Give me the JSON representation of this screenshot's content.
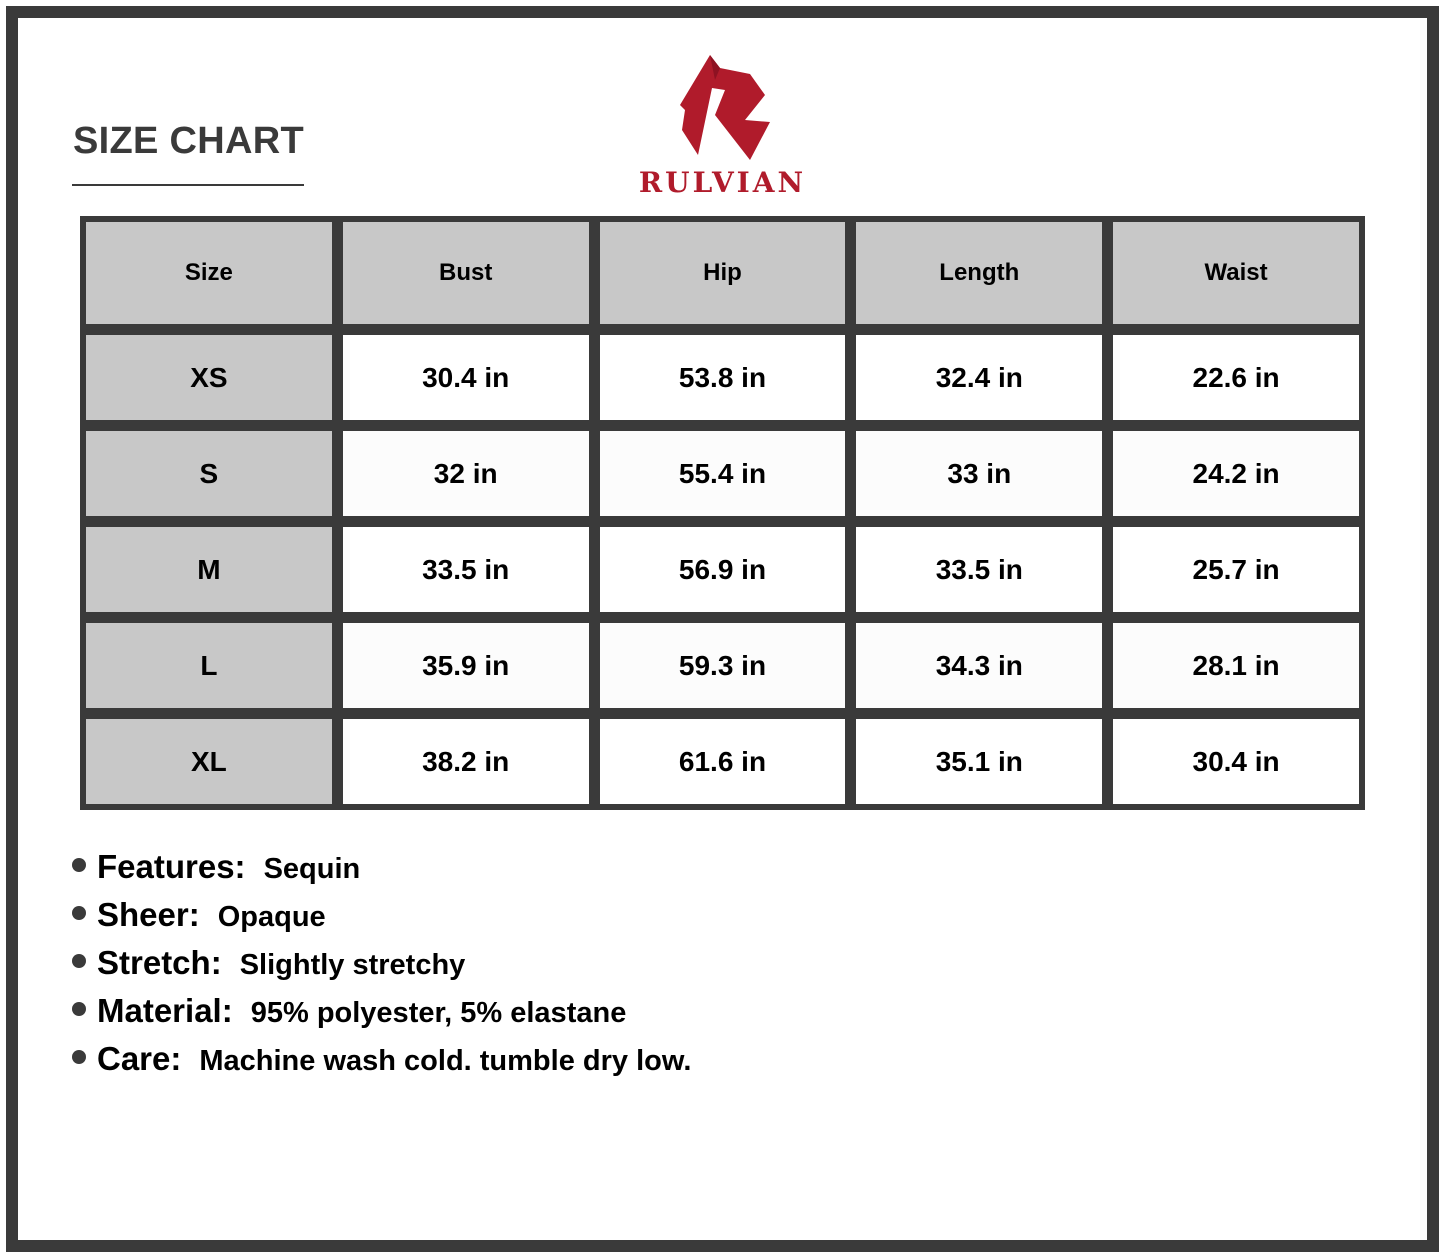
{
  "title": "SIZE CHART",
  "brand": {
    "name": "RULVIAN",
    "color": "#b01b2b"
  },
  "table": {
    "headers": [
      "Size",
      "Bust",
      "Hip",
      "Length",
      "Waist"
    ],
    "rows": [
      [
        "XS",
        "30.4 in",
        "53.8 in",
        "32.4 in",
        "22.6 in"
      ],
      [
        "S",
        "32 in",
        "55.4 in",
        "33 in",
        "24.2 in"
      ],
      [
        "M",
        "33.5 in",
        "56.9 in",
        "33.5 in",
        "25.7 in"
      ],
      [
        "L",
        "35.9 in",
        "59.3 in",
        "34.3 in",
        "28.1 in"
      ],
      [
        "XL",
        "38.2 in",
        "61.6 in",
        "35.1 in",
        "30.4 in"
      ]
    ]
  },
  "features": [
    {
      "label": "Features:",
      "value": "Sequin"
    },
    {
      "label": "Sheer:",
      "value": "Opaque"
    },
    {
      "label": "Stretch:",
      "value": "Slightly stretchy"
    },
    {
      "label": "Material:",
      "value": "95% polyester, 5% elastane"
    },
    {
      "label": "Care:",
      "value": "Machine wash cold. tumble dry low."
    }
  ]
}
